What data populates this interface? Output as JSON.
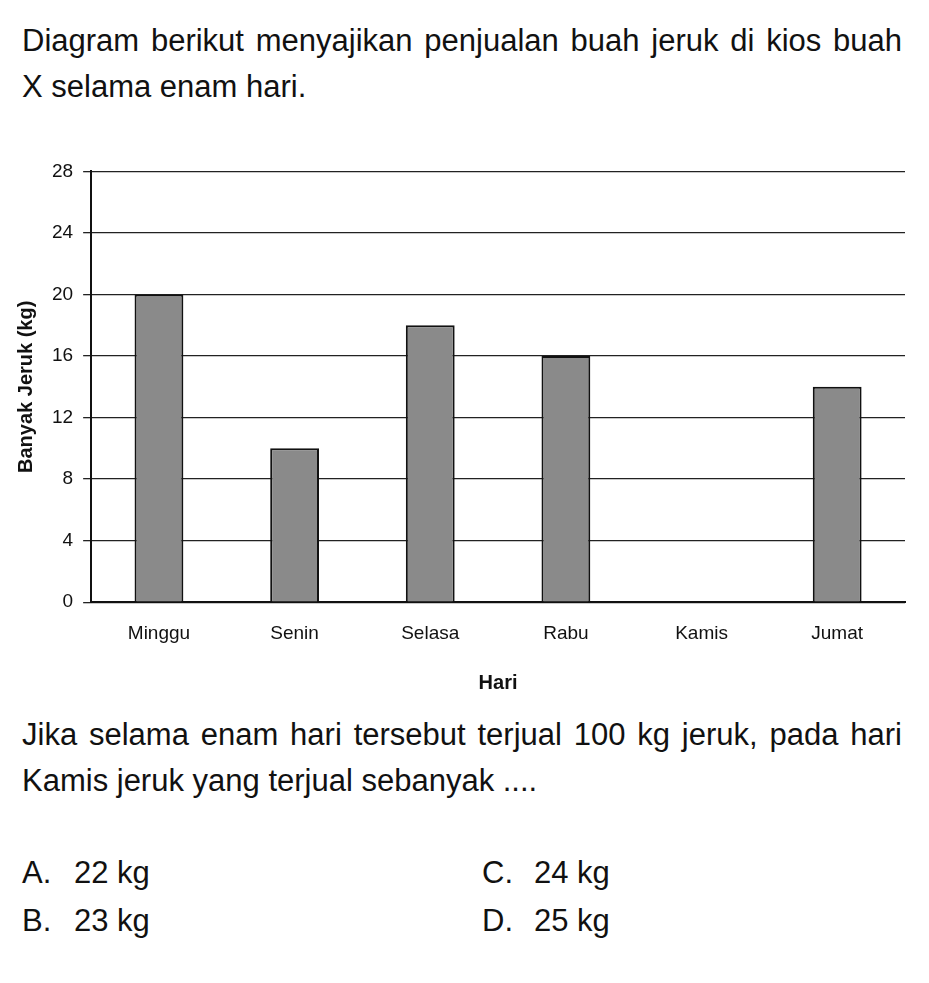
{
  "chart_data": {
    "type": "bar",
    "categories": [
      "Minggu",
      "Senin",
      "Selasa",
      "Rabu",
      "Kamis",
      "Jumat"
    ],
    "values": [
      20,
      10,
      18,
      16,
      null,
      14
    ],
    "color": "#8a8a8a",
    "x_label": "Hari",
    "y_label": "Banyak Jeruk (kg)",
    "ylim": [
      0,
      28
    ],
    "yticks": [
      0,
      4,
      8,
      12,
      16,
      20,
      24,
      28
    ],
    "grid": true
  },
  "question": {
    "intro": "Diagram berikut menyajikan penjualan buah jeruk di kios buah X selama enam hari.",
    "prompt": "Jika selama enam hari tersebut terjual 100 kg jeruk, pada hari Kamis jeruk yang terjual sebanyak ....",
    "options": [
      {
        "letter": "A.",
        "text": "22 kg"
      },
      {
        "letter": "B.",
        "text": "23 kg"
      },
      {
        "letter": "C.",
        "text": "24 kg"
      },
      {
        "letter": "D.",
        "text": "25 kg"
      }
    ]
  }
}
